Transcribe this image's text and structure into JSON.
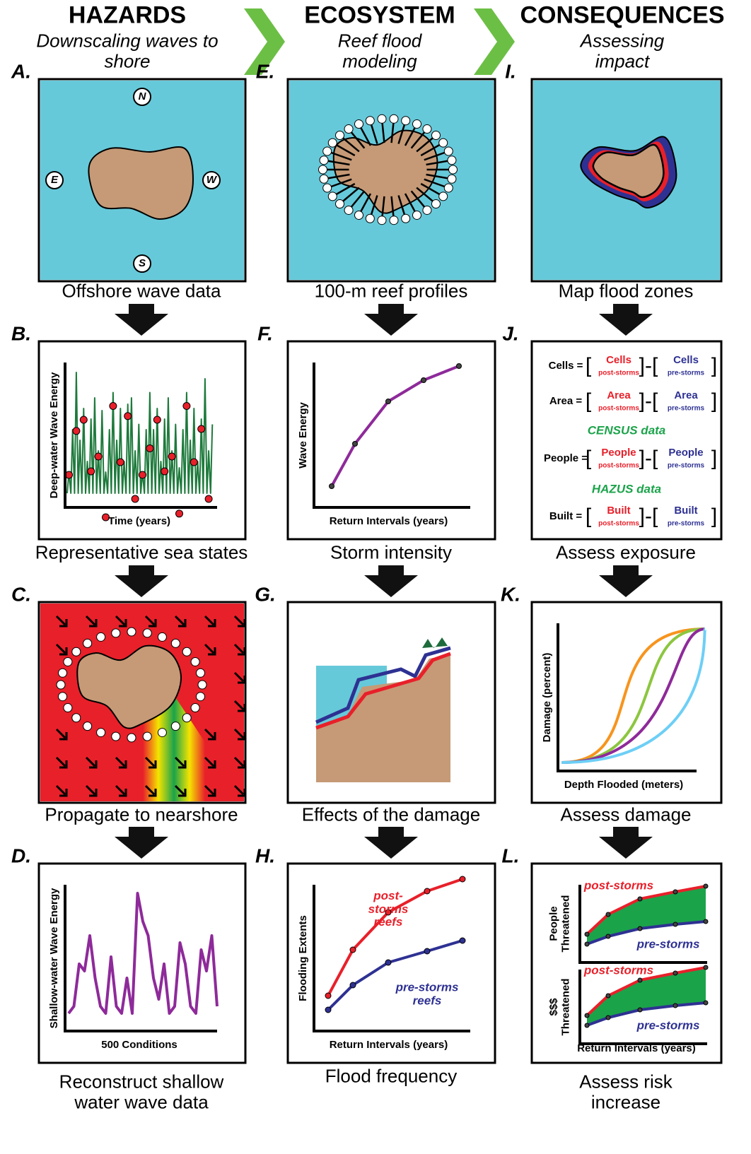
{
  "columns": [
    {
      "title": "HAZARDS",
      "subtitle": "Downscaling waves to shore"
    },
    {
      "title": "ECOSYSTEM",
      "subtitle": "Reef flood modeling"
    },
    {
      "title": "CONSEQUENCES",
      "subtitle": "Assessing impact"
    }
  ],
  "panels": [
    {
      "letter": "A.",
      "caption": "Offshore wave data",
      "compass": [
        "N",
        "E",
        "W",
        "S"
      ]
    },
    {
      "letter": "B.",
      "caption": "Representative sea states",
      "x_label": "Time (years)",
      "y_label": "Deep-water Wave Energy"
    },
    {
      "letter": "C.",
      "caption": "Propagate to nearshore"
    },
    {
      "letter": "D.",
      "caption": "Reconstruct shallow water wave data",
      "x_label": "500 Conditions",
      "y_label": "Shallow-water Wave Energy"
    },
    {
      "letter": "E.",
      "caption": "100-m reef profiles"
    },
    {
      "letter": "F.",
      "caption": "Storm intensity",
      "x_label": "Return Intervals (years)",
      "y_label": "Wave Energy"
    },
    {
      "letter": "G.",
      "caption": "Effects of the damage"
    },
    {
      "letter": "H.",
      "caption": "Flood frequency",
      "x_label": "Return Intervals (years)",
      "y_label": "Flooding Extents",
      "series_labels": [
        "post-storms reefs",
        "pre-storms reefs"
      ]
    },
    {
      "letter": "I.",
      "caption": "Map flood zones"
    },
    {
      "letter": "J.",
      "caption": "Assess exposure",
      "rows": [
        {
          "label": "Cells =",
          "post": "Cells",
          "post_sub": "post-storms",
          "pre": "Cells",
          "pre_sub": "pre-storms"
        },
        {
          "label": "Area =",
          "post": "Area",
          "post_sub": "post-storms",
          "pre": "Area",
          "pre_sub": "pre-storms"
        },
        {
          "label": "People =",
          "post": "People",
          "post_sub": "post-storms",
          "pre": "People",
          "pre_sub": "pre-storms"
        },
        {
          "label": "Built =",
          "post": "Built",
          "post_sub": "post-storms",
          "pre": "Built",
          "pre_sub": "pre-storms"
        }
      ],
      "notes": [
        "CENSUS data",
        "HAZUS data"
      ]
    },
    {
      "letter": "K.",
      "caption": "Assess damage",
      "x_label": "Depth Flooded (meters)",
      "y_label": "Damage (percent)"
    },
    {
      "letter": "L.",
      "caption": "Assess risk increase",
      "x_label": "Return Intervals (years)",
      "charts": [
        {
          "y_label": "People Threatened",
          "series_labels": [
            "post-storms",
            "pre-storms"
          ]
        },
        {
          "y_label": "$$$ Threatened",
          "series_labels": [
            "post-storms",
            "pre-storms"
          ]
        }
      ]
    }
  ]
}
